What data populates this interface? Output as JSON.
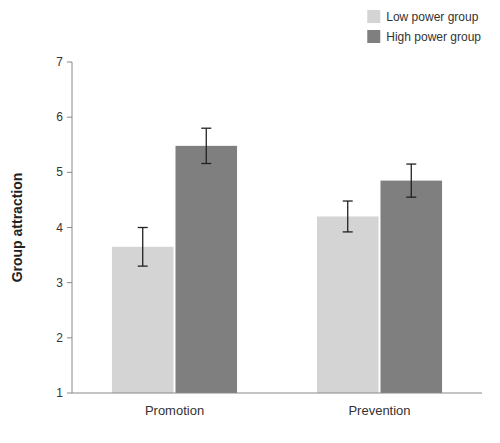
{
  "chart_data": {
    "type": "bar",
    "categories": [
      "Promotion",
      "Prevention"
    ],
    "series": [
      {
        "name": "Low power group",
        "color": "#d4d4d4",
        "values": [
          3.65,
          4.2
        ],
        "errors": [
          0.35,
          0.28
        ]
      },
      {
        "name": "High power group",
        "color": "#7f7f7f",
        "values": [
          5.48,
          4.85
        ],
        "errors": [
          0.32,
          0.3
        ]
      }
    ],
    "ylabel": "Group attraction",
    "ylim": [
      1,
      7
    ],
    "yticks": [
      1,
      2,
      3,
      4,
      5,
      6,
      7
    ],
    "grid": false,
    "legend": "upper right"
  }
}
